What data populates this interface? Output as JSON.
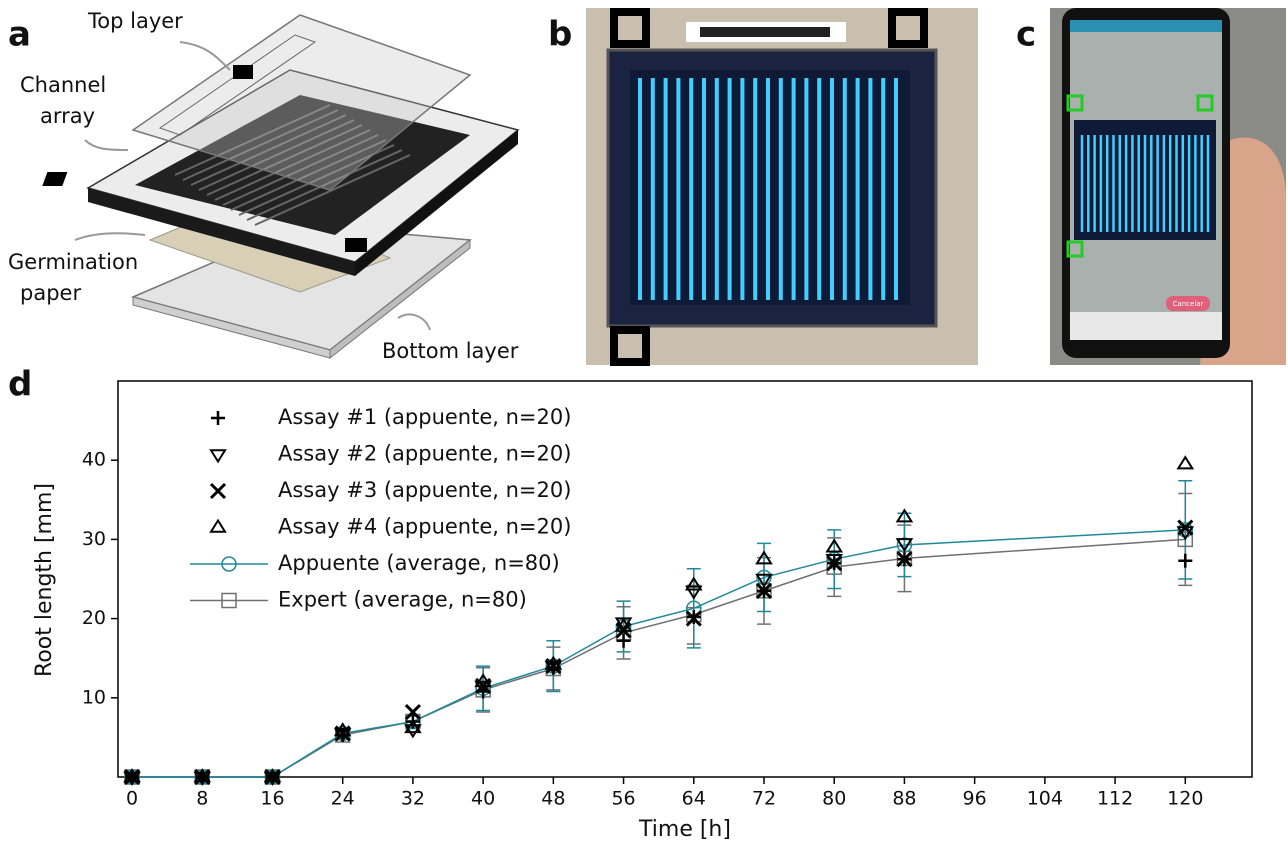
{
  "panels": [
    {
      "label": "a",
      "callouts": [
        [
          "Top layer"
        ],
        [
          "Channel",
          "array"
        ],
        [
          "Germination",
          "paper"
        ],
        [
          "Bottom layer"
        ]
      ]
    },
    {
      "label": "b"
    },
    {
      "label": "c",
      "button": "Cancelar"
    },
    {
      "label": "d"
    }
  ],
  "chart_data": {
    "type": "line",
    "xlabel": "Time [h]",
    "ylabel": "Root length [mm]",
    "x": [
      0,
      8,
      16,
      24,
      32,
      40,
      48,
      56,
      64,
      72,
      80,
      88,
      120
    ],
    "series": [
      {
        "name": "Assay #1 (appuente, n=20)",
        "color": "#000000",
        "marker": "+",
        "line": false,
        "values": [
          0,
          0,
          0,
          5.3,
          7,
          10.8,
          13.8,
          17.2,
          20.2,
          23.5,
          27,
          27.5,
          27.3
        ]
      },
      {
        "name": "Assay #2 (appuente, n=20)",
        "color": "#000000",
        "marker": "v",
        "line": false,
        "values": [
          0,
          0,
          0,
          5.5,
          6,
          11.5,
          14,
          19.5,
          23.5,
          25,
          27.5,
          29.5,
          31
        ]
      },
      {
        "name": "Assay #3 (appuente, n=20)",
        "color": "#000000",
        "marker": "x",
        "line": false,
        "values": [
          0,
          0,
          0,
          5.5,
          8.2,
          11.5,
          14,
          18.5,
          20,
          23.5,
          27,
          27.5,
          31.5
        ]
      },
      {
        "name": "Assay #4 (appuente, n=20)",
        "color": "#000000",
        "marker": "^",
        "line": false,
        "values": [
          0,
          0,
          0,
          5.8,
          6.2,
          12,
          14.2,
          19,
          24.2,
          27.5,
          29,
          32.8,
          39.5
        ]
      },
      {
        "name": "Appuente (average, n=80)",
        "color": "#1f8a9a",
        "marker": "o",
        "line": true,
        "values": [
          0,
          0,
          0,
          5.5,
          7,
          11.2,
          14,
          19,
          21.3,
          25.2,
          27.5,
          29.3,
          31.2
        ],
        "errors": [
          0,
          0,
          0,
          0.3,
          0.7,
          2.8,
          3.2,
          3.2,
          5,
          4.3,
          3.7,
          4,
          6.2
        ]
      },
      {
        "name": "Expert (average, n=80)",
        "color": "#707070",
        "marker": "s",
        "line": true,
        "values": [
          0,
          0,
          0,
          5.3,
          7,
          11,
          13.7,
          18.2,
          20.5,
          23.5,
          26.5,
          27.6,
          30
        ],
        "errors": [
          0,
          0,
          0,
          0.3,
          0.7,
          2.8,
          2.7,
          3.3,
          3.7,
          4.2,
          3.7,
          4.2,
          5.8
        ]
      }
    ],
    "xlim": [
      -1.6,
      127.6
    ],
    "ylim": [
      0,
      50
    ],
    "xticks": [
      0,
      8,
      16,
      24,
      32,
      40,
      48,
      56,
      64,
      72,
      80,
      88,
      96,
      104,
      112,
      120
    ],
    "yticks": [
      10,
      20,
      30,
      40
    ],
    "legend": "upper left"
  }
}
